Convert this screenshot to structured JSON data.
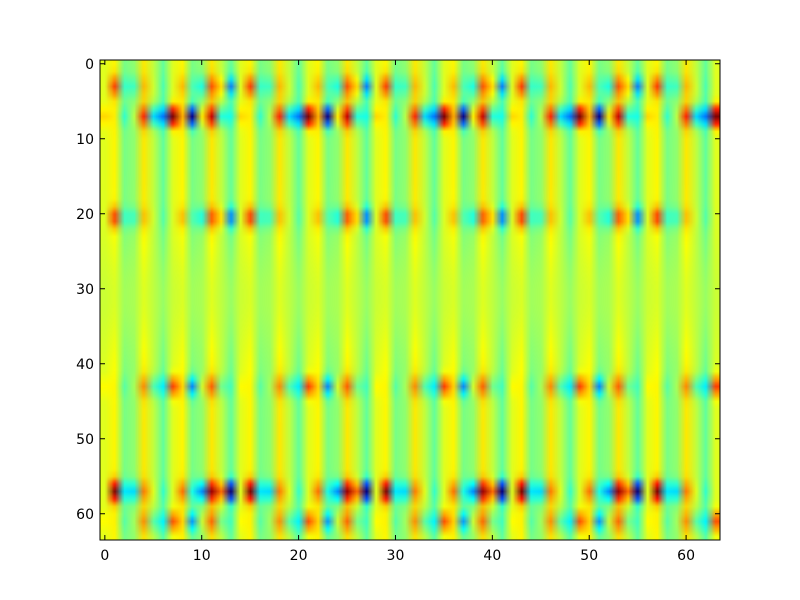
{
  "chart_data": {
    "type": "heatmap",
    "title": "",
    "xlabel": "",
    "ylabel": "",
    "colormap": "jet",
    "interpolation": "bilinear",
    "grid": false,
    "xlim": [
      -0.5,
      63.5
    ],
    "ylim": [
      63.5,
      -0.5
    ],
    "xticks": [
      0,
      10,
      20,
      30,
      40,
      50,
      60
    ],
    "yticks": [
      0,
      10,
      20,
      30,
      40,
      50,
      60
    ],
    "xtick_labels": [
      "0",
      "10",
      "20",
      "30",
      "40",
      "50",
      "60"
    ],
    "ytick_labels": [
      "0",
      "10",
      "20",
      "30",
      "40",
      "50",
      "60"
    ],
    "matrix_shape": [
      64,
      64
    ],
    "column_period": 3.5,
    "band_rows": [
      {
        "row": 3,
        "amplitude": 0.45
      },
      {
        "row": 7,
        "amplitude": 1.0
      },
      {
        "row": 20.5,
        "amplitude": 0.5
      },
      {
        "row": 43,
        "amplitude": 0.5
      },
      {
        "row": 57,
        "amplitude": 1.0
      },
      {
        "row": 61,
        "amplitude": 0.45
      }
    ],
    "value_range": [
      -1,
      1
    ],
    "background_value": 0.12
  }
}
